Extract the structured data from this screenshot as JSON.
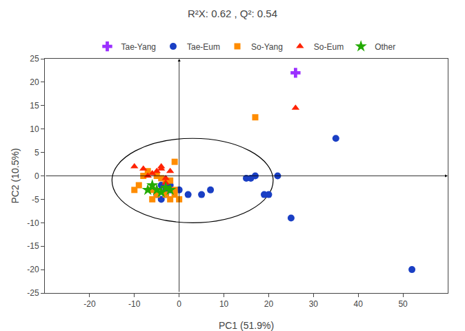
{
  "chart_data": {
    "type": "scatter",
    "title": "R²X: 0.62 , Q²: 0.54",
    "xlabel": "PC1 (51.9%)",
    "ylabel": "PC2 (10.5%)",
    "xlim": [
      -30,
      60
    ],
    "ylim": [
      -25,
      25
    ],
    "xticks": [
      -20,
      -10,
      0,
      10,
      20,
      30,
      40,
      50
    ],
    "yticks": [
      -25,
      -20,
      -15,
      -10,
      -5,
      0,
      5,
      10,
      15,
      20,
      25
    ],
    "grid": false,
    "legend": "top",
    "series": [
      {
        "name": "Tae-Yang",
        "color": "#9B30FF",
        "marker": "plus",
        "x": [
          26
        ],
        "y": [
          22
        ]
      },
      {
        "name": "Tae-Eum",
        "color": "#1a3fc4",
        "marker": "circle",
        "x": [
          17,
          19,
          20,
          22,
          25,
          35,
          52,
          15,
          16,
          -2,
          -3,
          -4,
          -5,
          -4,
          -3,
          -2,
          0,
          2,
          5,
          7
        ],
        "y": [
          0,
          -4,
          -4,
          0,
          -9,
          8,
          -20,
          -0.5,
          -0.5,
          -3,
          -3,
          -2,
          -4,
          -5,
          -4,
          -2,
          -3,
          -4,
          -4,
          -3
        ]
      },
      {
        "name": "So-Yang",
        "color": "#FF8C00",
        "marker": "square",
        "x": [
          17,
          -10,
          -9,
          -8,
          -7,
          -6,
          -5,
          -4,
          -5,
          -6,
          -3,
          -2,
          -1,
          -3,
          -2,
          -1,
          0,
          -1
        ],
        "y": [
          12.5,
          -3,
          -2,
          0,
          1,
          -3,
          0,
          -0.5,
          -4,
          -5,
          -4,
          -5,
          -4,
          -1,
          -1,
          3,
          -5,
          -3
        ]
      },
      {
        "name": "So-Eum",
        "color": "#FF2200",
        "marker": "triangle",
        "x": [
          26,
          -10,
          -8,
          -7,
          -6,
          -5,
          -4,
          -3,
          -2,
          -3,
          -4
        ],
        "y": [
          14.5,
          2,
          1.5,
          0,
          0.5,
          1,
          2,
          -0.5,
          1,
          -1.5,
          1.5
        ]
      },
      {
        "name": "Other",
        "color": "#22AA00",
        "marker": "star",
        "x": [
          -5,
          -4,
          -3,
          -2,
          -6,
          -7
        ],
        "y": [
          -3,
          -3.5,
          -2.5,
          -3,
          -2,
          -3
        ]
      }
    ],
    "ellipse": {
      "cx": 3,
      "cy": -1,
      "rx": 18,
      "ry": 9
    }
  }
}
